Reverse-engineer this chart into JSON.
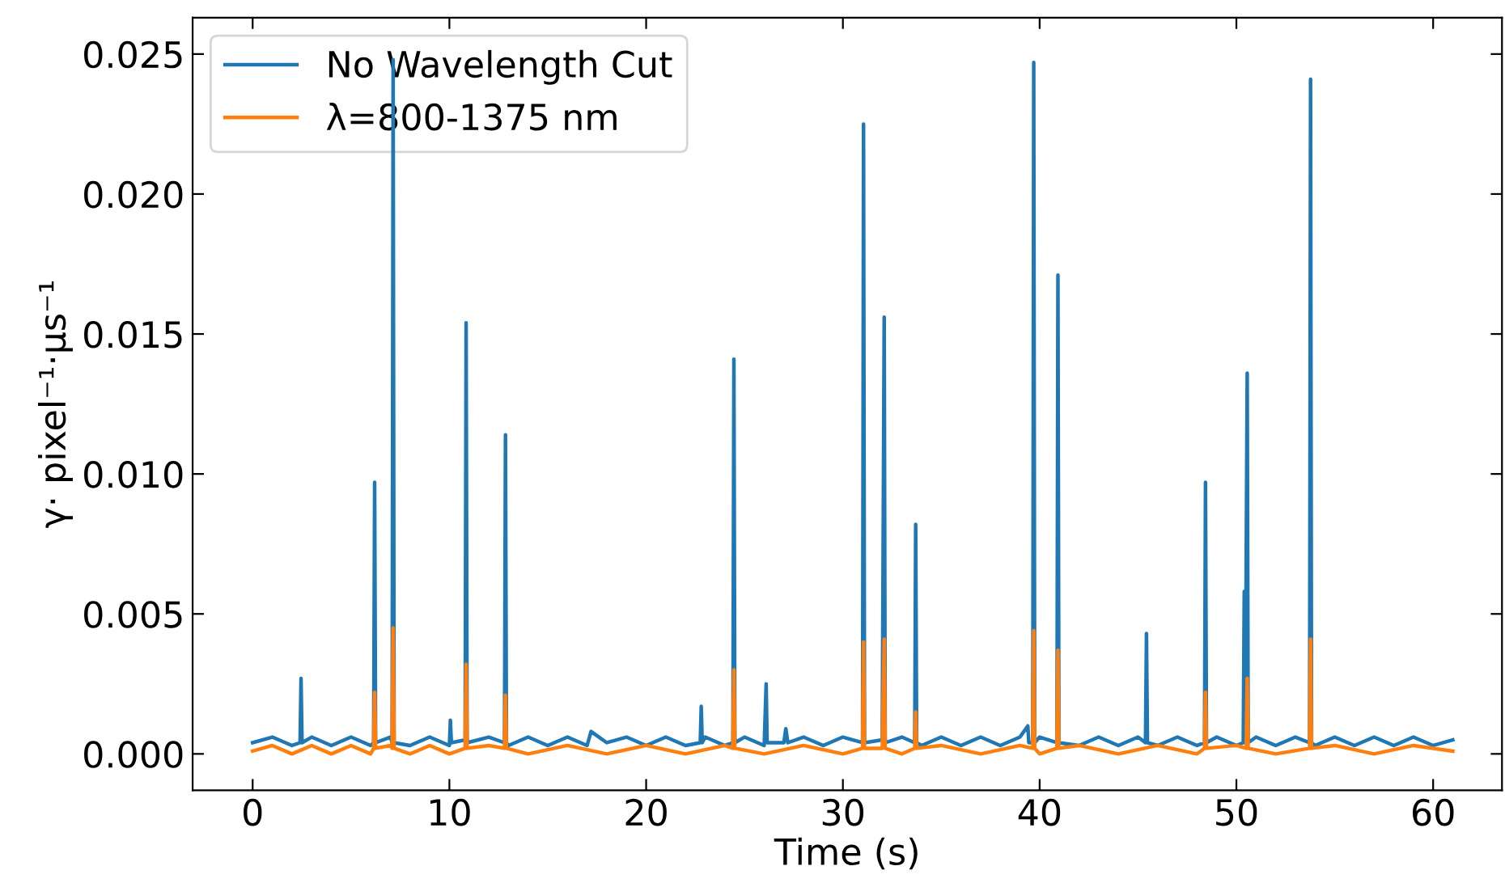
{
  "chart_data": {
    "type": "line",
    "xlabel": "Time (s)",
    "ylabel": "γ· pixel⁻¹·μs⁻¹",
    "xlim": [
      -3.05,
      63.5
    ],
    "xticks": [
      0,
      10,
      20,
      30,
      40,
      50,
      60
    ],
    "ylim": [
      -0.0013,
      0.0263
    ],
    "yticks": [
      {
        "value": 0,
        "label": "0.000"
      },
      {
        "value": 0.005,
        "label": "0.005"
      },
      {
        "value": 0.01,
        "label": "0.010"
      },
      {
        "value": 0.015,
        "label": "0.015"
      },
      {
        "value": 0.02,
        "label": "0.020"
      },
      {
        "value": 0.025,
        "label": "0.025"
      }
    ],
    "grid": false,
    "legend": "top left",
    "line_style": "solid",
    "marker": "none",
    "series": [
      {
        "name": "No Wavelength Cut",
        "color": "#1f77b4",
        "x": [
          0,
          1,
          2,
          2.41,
          2.46,
          2.51,
          3,
          4,
          5,
          6,
          6.15,
          6.2,
          6.25,
          7,
          7.09,
          7.14,
          7.19,
          8,
          9,
          10,
          10.05,
          10.1,
          10.8,
          10.85,
          10.9,
          12,
          12.8,
          12.85,
          12.9,
          13,
          14,
          15,
          16,
          17,
          17.2,
          18,
          19,
          20,
          21,
          22,
          22.75,
          22.8,
          22.85,
          23,
          24,
          24.41,
          24.46,
          24.51,
          25,
          26,
          26.1,
          26.15,
          27,
          27.1,
          27.2,
          28,
          29,
          30,
          31,
          31.05,
          31.1,
          32,
          32.1,
          32.15,
          33,
          33.65,
          33.7,
          33.75,
          34,
          35,
          36,
          37,
          38,
          39,
          39.4,
          39.45,
          39.65,
          39.7,
          39.75,
          40,
          40.88,
          40.93,
          40.98,
          42,
          43,
          44,
          45,
          45.38,
          45.43,
          45.48,
          46,
          47,
          48,
          48.38,
          48.43,
          48.48,
          49,
          50,
          50.35,
          50.4,
          50.45,
          50.55,
          50.6,
          51,
          52,
          53,
          53.72,
          53.77,
          53.82,
          54,
          55,
          56,
          57,
          58,
          59,
          60,
          61
        ],
        "values": [
          0.0004,
          0.0006,
          0.0003,
          0.0004,
          0.0027,
          0.0004,
          0.0006,
          0.0003,
          0.0006,
          0.0003,
          0.0004,
          0.0097,
          0.0004,
          0.0006,
          0.0004,
          0.0248,
          0.0004,
          0.0003,
          0.0006,
          0.0003,
          0.0012,
          0.0004,
          0.0005,
          0.0154,
          0.0004,
          0.0006,
          0.0004,
          0.0114,
          0.0004,
          0.0003,
          0.0006,
          0.0003,
          0.0006,
          0.0003,
          0.0008,
          0.0004,
          0.0006,
          0.0003,
          0.0006,
          0.0003,
          0.0004,
          0.0017,
          0.0004,
          0.0006,
          0.0003,
          0.0004,
          0.0141,
          0.0004,
          0.0006,
          0.0003,
          0.0025,
          0.0004,
          0.0004,
          0.0009,
          0.0004,
          0.0006,
          0.0003,
          0.0006,
          0.0004,
          0.0225,
          0.0004,
          0.0005,
          0.0156,
          0.0004,
          0.0006,
          0.0004,
          0.0082,
          0.0004,
          0.0003,
          0.0006,
          0.0003,
          0.0006,
          0.0003,
          0.0006,
          0.001,
          0.0004,
          0.0004,
          0.0247,
          0.0004,
          0.0006,
          0.0004,
          0.0171,
          0.0004,
          0.0003,
          0.0006,
          0.0003,
          0.0006,
          0.0004,
          0.0043,
          0.0004,
          0.0003,
          0.0006,
          0.0003,
          0.0004,
          0.0097,
          0.0004,
          0.0006,
          0.0003,
          0.0004,
          0.0058,
          0.0004,
          0.0136,
          0.0004,
          0.0006,
          0.0003,
          0.0006,
          0.0004,
          0.0241,
          0.0004,
          0.0003,
          0.0006,
          0.0003,
          0.0006,
          0.0003,
          0.0006,
          0.0003,
          0.0005
        ]
      },
      {
        "name": "λ=800-1375 nm",
        "color": "#ff7f0e",
        "x": [
          0,
          1,
          2,
          3,
          4,
          5,
          6,
          6.15,
          6.2,
          6.25,
          7,
          7.09,
          7.14,
          7.19,
          8,
          9,
          10,
          10.8,
          10.85,
          10.9,
          12,
          12.8,
          12.85,
          12.9,
          14,
          16,
          18,
          20,
          22,
          24,
          24.41,
          24.46,
          24.51,
          26,
          28,
          30,
          31,
          31.05,
          31.1,
          32,
          32.1,
          32.15,
          33,
          33.65,
          33.7,
          33.75,
          35,
          37,
          39,
          39.65,
          39.7,
          39.75,
          40,
          40.88,
          40.93,
          40.98,
          42,
          44,
          46,
          48,
          48.38,
          48.43,
          48.48,
          50,
          50.5,
          50.55,
          50.6,
          52,
          53.72,
          53.77,
          53.82,
          55,
          57,
          59,
          61
        ],
        "values": [
          0.0001,
          0.0003,
          0.0,
          0.0003,
          0.0,
          0.0003,
          0.0,
          0.0002,
          0.0022,
          0.0002,
          0.0003,
          0.0002,
          0.0045,
          0.0002,
          0.0,
          0.0003,
          0.0,
          0.0002,
          0.0032,
          0.0002,
          0.0003,
          0.0002,
          0.0021,
          0.0002,
          0.0,
          0.0003,
          0.0,
          0.0003,
          0.0,
          0.0003,
          0.0002,
          0.003,
          0.0002,
          0.0,
          0.0003,
          0.0,
          0.0002,
          0.004,
          0.0002,
          0.0002,
          0.0041,
          0.0002,
          0.0,
          0.0002,
          0.0015,
          0.0002,
          0.0003,
          0.0,
          0.0003,
          0.0002,
          0.0044,
          0.0002,
          0.0,
          0.0002,
          0.0037,
          0.0002,
          0.0003,
          0.0,
          0.0003,
          0.0,
          0.0002,
          0.0022,
          0.0002,
          0.0003,
          0.0002,
          0.0027,
          0.0002,
          0.0,
          0.0002,
          0.0041,
          0.0002,
          0.0003,
          0.0,
          0.0003,
          0.0001
        ]
      }
    ]
  }
}
